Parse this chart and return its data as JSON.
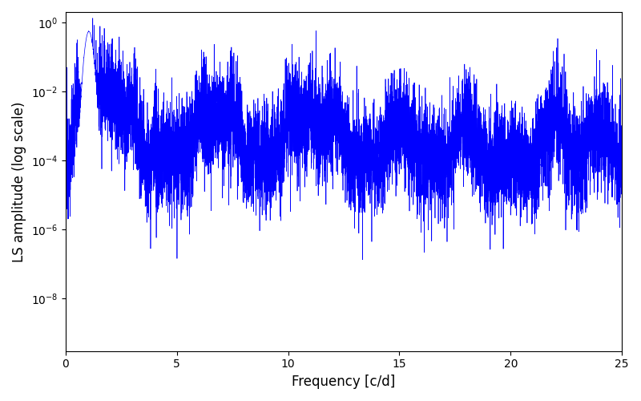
{
  "title": "",
  "xlabel": "Frequency [c/d]",
  "ylabel": "LS amplitude (log scale)",
  "xlim": [
    0,
    25
  ],
  "ylim": [
    3e-10,
    2.0
  ],
  "yticks": [
    1e-08,
    1e-06,
    0.0001,
    0.01,
    1.0
  ],
  "line_color": "#0000ff",
  "line_width": 0.5,
  "figsize": [
    8.0,
    5.0
  ],
  "dpi": 100,
  "seed": 12345,
  "n_points": 8000,
  "freq_max": 25.0,
  "peak_freq": 1.05,
  "peak_amplitude": 0.55,
  "base_level": 0.00012,
  "noise_scale_log": 1.8
}
